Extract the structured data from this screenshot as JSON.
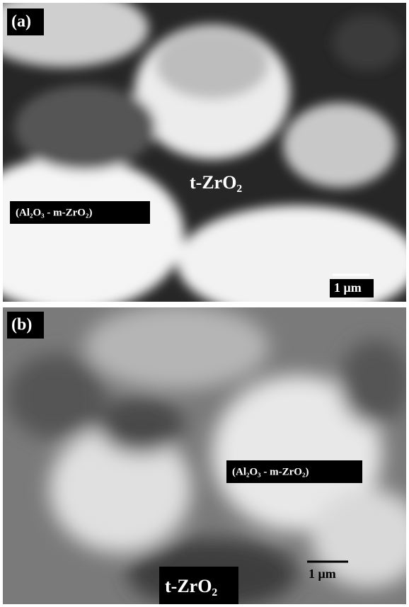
{
  "panels": [
    {
      "label": "(a)",
      "phase_label": "t-ZrO₂",
      "composite_label": "(Al₂O₃ - m-ZrO₂)",
      "scale_bar": "1 μm"
    },
    {
      "label": "(b)",
      "phase_label": "t-ZrO₂",
      "composite_label": "(Al₂O₃ - m-ZrO₂)",
      "scale_bar": "1 μm"
    }
  ]
}
